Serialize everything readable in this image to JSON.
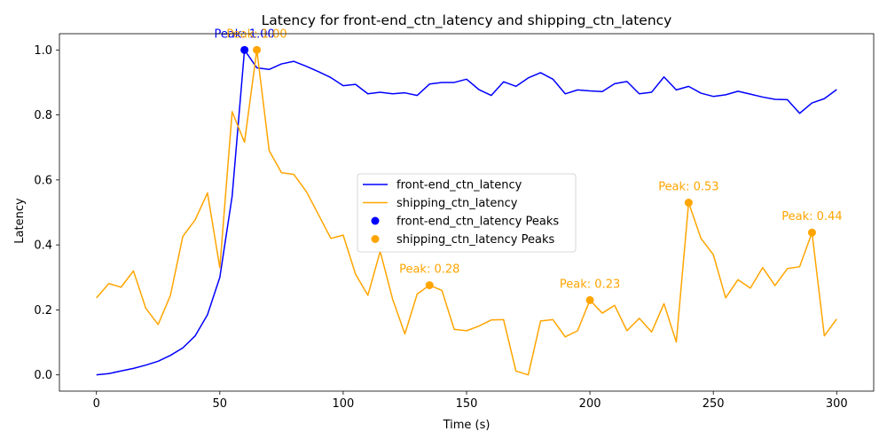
{
  "chart_data": {
    "type": "line",
    "title": "Latency for front-end_ctn_latency and shipping_ctn_latency",
    "xlabel": "Time (s)",
    "ylabel": "Latency",
    "xlim": [
      -15,
      315
    ],
    "ylim": [
      -0.05,
      1.05
    ],
    "xticks": [
      0,
      50,
      100,
      150,
      200,
      250,
      300
    ],
    "yticks": [
      0.0,
      0.2,
      0.4,
      0.6,
      0.8,
      1.0
    ],
    "xtick_labels": [
      "0",
      "50",
      "100",
      "150",
      "200",
      "250",
      "300"
    ],
    "ytick_labels": [
      "0.0",
      "0.2",
      "0.4",
      "0.6",
      "0.8",
      "1.0"
    ],
    "grid": false,
    "legend_position": "center-right",
    "x": [
      0,
      5,
      10,
      15,
      20,
      25,
      30,
      35,
      40,
      45,
      50,
      55,
      60,
      65,
      70,
      75,
      80,
      85,
      90,
      95,
      100,
      105,
      110,
      115,
      120,
      125,
      130,
      135,
      140,
      145,
      150,
      155,
      160,
      165,
      170,
      175,
      180,
      185,
      190,
      195,
      200,
      205,
      210,
      215,
      220,
      225,
      230,
      235,
      240,
      245,
      250,
      255,
      260,
      265,
      270,
      275,
      280,
      285,
      290,
      295,
      300
    ],
    "series": [
      {
        "name": "front-end_ctn_latency",
        "color": "#0000ff",
        "values": [
          0.0,
          0.004,
          0.012,
          0.02,
          0.03,
          0.042,
          0.06,
          0.083,
          0.12,
          0.185,
          0.3,
          0.55,
          1.0,
          0.945,
          0.94,
          0.957,
          0.965,
          0.95,
          0.933,
          0.915,
          0.89,
          0.894,
          0.865,
          0.87,
          0.865,
          0.868,
          0.86,
          0.895,
          0.9,
          0.9,
          0.91,
          0.878,
          0.86,
          0.902,
          0.888,
          0.914,
          0.93,
          0.91,
          0.865,
          0.877,
          0.874,
          0.872,
          0.896,
          0.903,
          0.865,
          0.87,
          0.917,
          0.877,
          0.888,
          0.867,
          0.857,
          0.862,
          0.873,
          0.864,
          0.855,
          0.848,
          0.847,
          0.805,
          0.837,
          0.85,
          0.878
        ]
      },
      {
        "name": "shipping_ctn_latency",
        "color": "#ffa500",
        "values": [
          0.237,
          0.281,
          0.27,
          0.32,
          0.205,
          0.155,
          0.245,
          0.426,
          0.477,
          0.56,
          0.33,
          0.81,
          0.716,
          1.0,
          0.69,
          0.622,
          0.617,
          0.565,
          0.493,
          0.42,
          0.43,
          0.31,
          0.245,
          0.38,
          0.234,
          0.126,
          0.249,
          0.276,
          0.26,
          0.14,
          0.136,
          0.15,
          0.169,
          0.17,
          0.012,
          0.0,
          0.166,
          0.17,
          0.117,
          0.136,
          0.23,
          0.19,
          0.214,
          0.136,
          0.174,
          0.132,
          0.219,
          0.101,
          0.53,
          0.42,
          0.37,
          0.237,
          0.293,
          0.267,
          0.33,
          0.275,
          0.327,
          0.333,
          0.438,
          0.12,
          0.172
        ]
      }
    ],
    "peaks": [
      {
        "series": "front-end_ctn_latency",
        "x": 60,
        "y": 1.0,
        "label": "Peak: 1.00",
        "color": "#0000ff"
      },
      {
        "series": "shipping_ctn_latency",
        "x": 65,
        "y": 1.0,
        "label": "Peak: 1.00",
        "color": "#ffa500"
      },
      {
        "series": "shipping_ctn_latency",
        "x": 135,
        "y": 0.276,
        "label": "Peak: 0.28",
        "color": "#ffa500"
      },
      {
        "series": "shipping_ctn_latency",
        "x": 200,
        "y": 0.23,
        "label": "Peak: 0.23",
        "color": "#ffa500"
      },
      {
        "series": "shipping_ctn_latency",
        "x": 240,
        "y": 0.53,
        "label": "Peak: 0.53",
        "color": "#ffa500"
      },
      {
        "series": "shipping_ctn_latency",
        "x": 290,
        "y": 0.438,
        "label": "Peak: 0.44",
        "color": "#ffa500"
      }
    ],
    "legend": [
      {
        "label": "front-end_ctn_latency",
        "kind": "line",
        "color": "#0000ff"
      },
      {
        "label": "shipping_ctn_latency",
        "kind": "line",
        "color": "#ffa500"
      },
      {
        "label": "front-end_ctn_latency Peaks",
        "kind": "marker",
        "color": "#0000ff"
      },
      {
        "label": "shipping_ctn_latency Peaks",
        "kind": "marker",
        "color": "#ffa500"
      }
    ]
  }
}
